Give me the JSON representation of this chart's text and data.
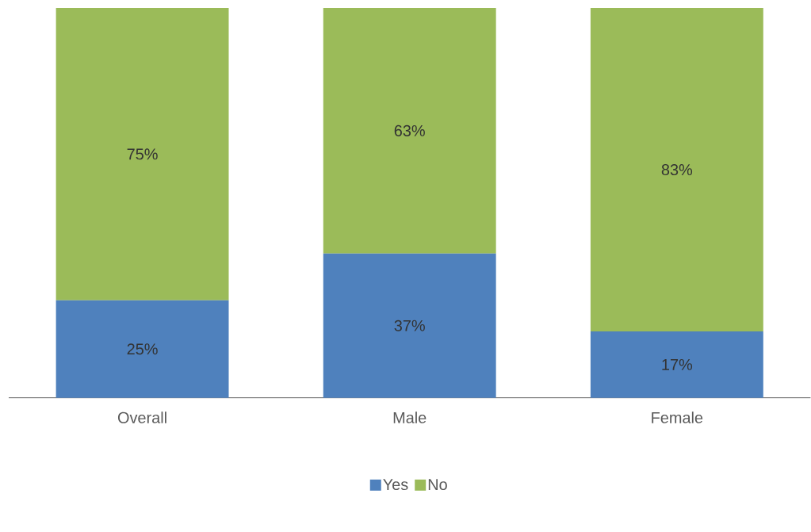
{
  "chart_data": {
    "type": "bar",
    "stacked": true,
    "categories": [
      "Overall",
      "Male",
      "Female"
    ],
    "tick_labels": "x",
    "legend": "bottom",
    "series": [
      {
        "name": "Yes",
        "color": "#4f81bd",
        "values": [
          25,
          37,
          17
        ],
        "value_labels": [
          "25%",
          "37%",
          "17%"
        ]
      },
      {
        "name": "No",
        "color": "#9bbb59",
        "values": [
          75,
          63,
          83
        ],
        "value_labels": [
          "75%",
          "63%",
          "83%"
        ]
      }
    ]
  }
}
